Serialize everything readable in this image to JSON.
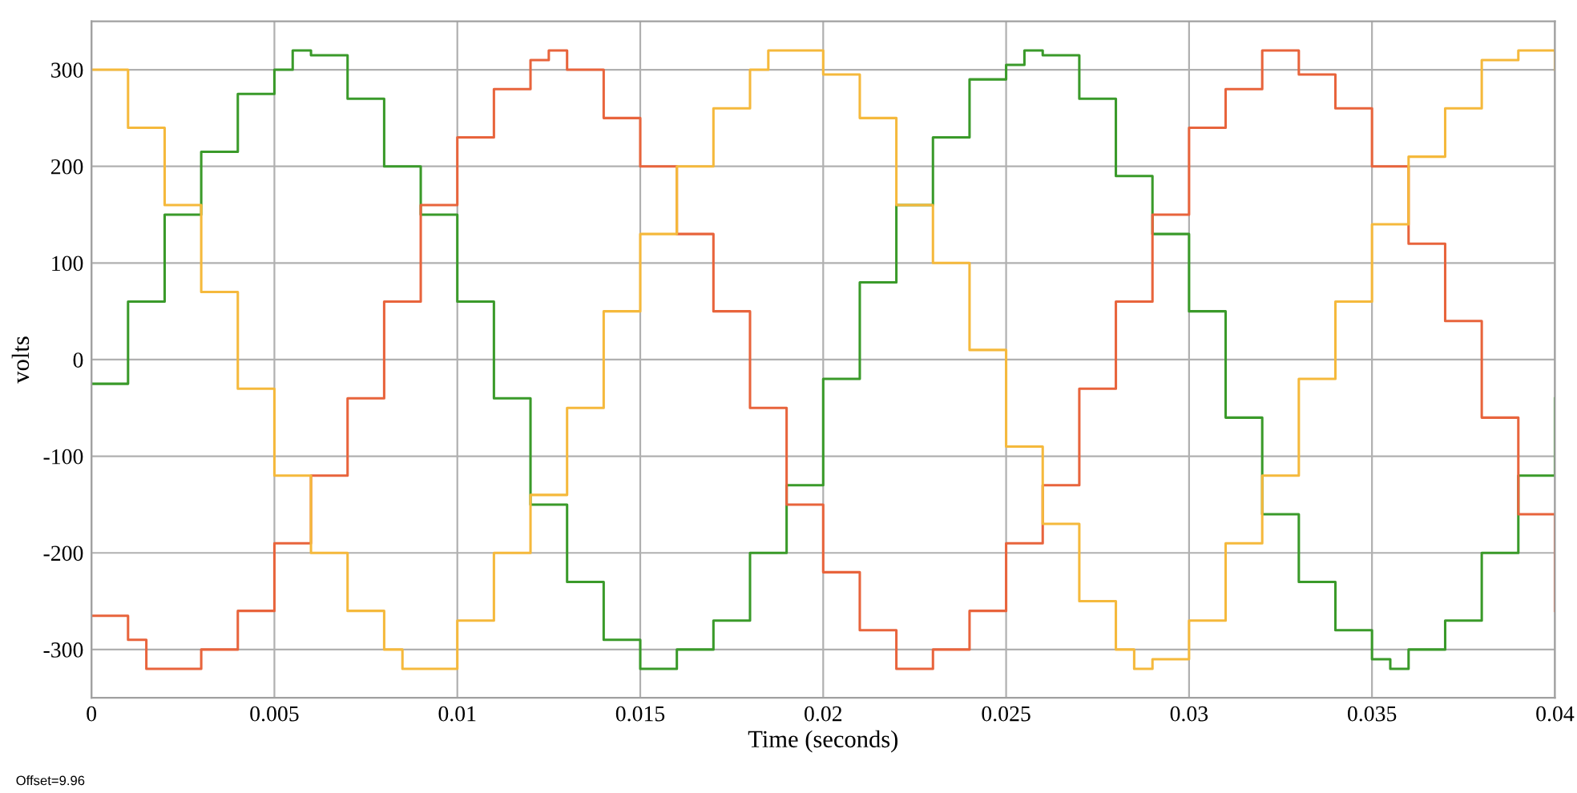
{
  "chart_data": {
    "type": "step",
    "xlabel": "Time (seconds)",
    "ylabel": "volts",
    "annotations": [
      "Offset=9.96"
    ],
    "xlim": [
      0,
      0.04
    ],
    "ylim": [
      -350,
      350
    ],
    "xticks": [
      0,
      0.005,
      0.01,
      0.015,
      0.02,
      0.025,
      0.03,
      0.035,
      0.04
    ],
    "yticks": [
      -300,
      -200,
      -100,
      0,
      100,
      200,
      300
    ],
    "grid": true,
    "series": [
      {
        "color": "#3a9a2a",
        "x": [
          0,
          0.001,
          0.002,
          0.003,
          0.004,
          0.005,
          0.0055,
          0.006,
          0.007,
          0.008,
          0.009,
          0.01,
          0.011,
          0.012,
          0.013,
          0.014,
          0.015,
          0.016,
          0.017,
          0.018,
          0.019,
          0.02,
          0.021,
          0.022,
          0.023,
          0.024,
          0.025,
          0.0255,
          0.026,
          0.027,
          0.028,
          0.029,
          0.03,
          0.031,
          0.032,
          0.033,
          0.034,
          0.035,
          0.0355,
          0.036,
          0.037,
          0.038,
          0.039,
          0.04
        ],
        "values": [
          -25,
          60,
          150,
          215,
          275,
          300,
          320,
          315,
          270,
          200,
          150,
          60,
          -40,
          -150,
          -230,
          -290,
          -320,
          -300,
          -270,
          -200,
          -130,
          -20,
          80,
          160,
          230,
          290,
          305,
          320,
          315,
          270,
          190,
          130,
          50,
          -60,
          -160,
          -230,
          -280,
          -310,
          -320,
          -300,
          -270,
          -200,
          -120,
          -40
        ]
      },
      {
        "color": "#e8643c",
        "x": [
          0,
          0.001,
          0.0015,
          0.002,
          0.003,
          0.004,
          0.005,
          0.006,
          0.007,
          0.008,
          0.009,
          0.01,
          0.011,
          0.012,
          0.0125,
          0.013,
          0.014,
          0.015,
          0.016,
          0.017,
          0.018,
          0.019,
          0.02,
          0.021,
          0.022,
          0.023,
          0.024,
          0.025,
          0.026,
          0.027,
          0.028,
          0.029,
          0.03,
          0.031,
          0.032,
          0.033,
          0.034,
          0.035,
          0.036,
          0.037,
          0.038,
          0.039,
          0.04
        ],
        "values": [
          -265,
          -290,
          -320,
          -320,
          -300,
          -260,
          -190,
          -120,
          -40,
          60,
          160,
          230,
          280,
          310,
          320,
          300,
          250,
          200,
          130,
          50,
          -50,
          -150,
          -220,
          -280,
          -320,
          -300,
          -260,
          -190,
          -130,
          -30,
          60,
          150,
          240,
          280,
          320,
          295,
          260,
          200,
          120,
          40,
          -60,
          -160,
          -260
        ]
      },
      {
        "color": "#f5b93c",
        "x": [
          0,
          0.001,
          0.002,
          0.003,
          0.004,
          0.005,
          0.006,
          0.007,
          0.008,
          0.0085,
          0.009,
          0.01,
          0.011,
          0.012,
          0.013,
          0.014,
          0.015,
          0.016,
          0.017,
          0.018,
          0.0185,
          0.019,
          0.02,
          0.021,
          0.022,
          0.023,
          0.024,
          0.025,
          0.026,
          0.027,
          0.028,
          0.0285,
          0.029,
          0.03,
          0.031,
          0.032,
          0.033,
          0.034,
          0.035,
          0.036,
          0.037,
          0.038,
          0.039,
          0.04
        ],
        "values": [
          300,
          240,
          160,
          70,
          -30,
          -120,
          -200,
          -260,
          -300,
          -320,
          -320,
          -270,
          -200,
          -140,
          -50,
          50,
          130,
          200,
          260,
          300,
          320,
          320,
          295,
          250,
          160,
          100,
          10,
          -90,
          -170,
          -250,
          -300,
          -320,
          -310,
          -270,
          -190,
          -120,
          -20,
          60,
          140,
          210,
          260,
          310,
          320,
          300
        ]
      }
    ]
  }
}
